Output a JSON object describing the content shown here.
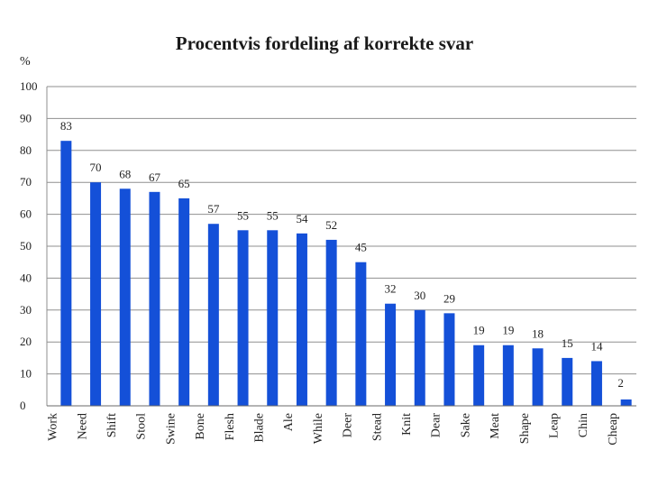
{
  "chart_data": {
    "type": "bar",
    "title": "Procentvis fordeling af korrekte svar",
    "ylabel": "%",
    "ylim": [
      0,
      100
    ],
    "yticks": [
      "0",
      "10",
      "20",
      "30",
      "40",
      "50",
      "60",
      "70",
      "80",
      "90",
      "100"
    ],
    "grid": true,
    "bar_color": "#1450d8",
    "categories": [
      "Work",
      "Need",
      "Shift",
      "Stool",
      "Swine",
      "Bone",
      "Flesh",
      "Blade",
      "Ale",
      "While",
      "Deer",
      "Stead",
      "Knit",
      "Dear",
      "Sake",
      "Meat",
      "Shape",
      "Leap",
      "Chin",
      "Cheap"
    ],
    "values": [
      83,
      70,
      68,
      67,
      65,
      57,
      55,
      55,
      54,
      52,
      45,
      32,
      30,
      29,
      19,
      19,
      18,
      15,
      14,
      2
    ],
    "value_labels": [
      "83",
      "70",
      "68",
      "67",
      "65",
      "57",
      "55",
      "55",
      "54",
      "52",
      "45",
      "32",
      "30",
      "29",
      "19",
      "19",
      "18",
      "15",
      "14",
      "2"
    ]
  }
}
